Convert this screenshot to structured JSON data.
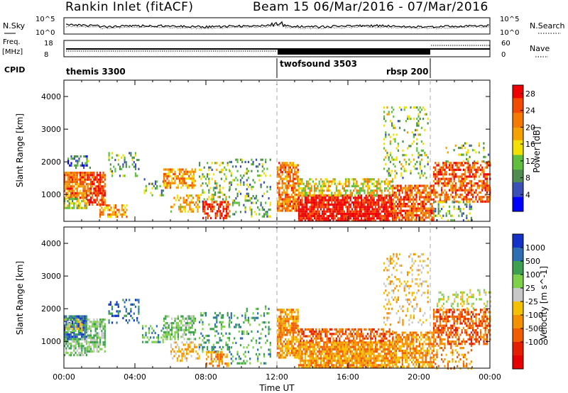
{
  "header": {
    "station": "Rankin Inlet (fitACF)",
    "beam_range": "Beam 15  06/Mar/2016 - 07/Mar/2016"
  },
  "noise_panel": {
    "left_label": "N.Sky",
    "right_label": "N.Search",
    "left_ticks": [
      "10^5",
      "10^0"
    ],
    "right_ticks": [
      "10^5",
      "10^0"
    ]
  },
  "freq_panel": {
    "left_label_top": "Freq.",
    "left_label_unit": "[MHz]",
    "right_label": "Nave",
    "left_ticks": [
      "18",
      "8"
    ],
    "right_ticks": [
      "60",
      "0"
    ]
  },
  "cpid_panel": {
    "label": "CPID",
    "modes": [
      {
        "name": "themis 3300",
        "start_hr": 0,
        "end_hr": 12
      },
      {
        "name": "twofsound 3503",
        "start_hr": 12,
        "end_hr": 20.7
      },
      {
        "name": "rbsp 200",
        "start_hr": 20.7,
        "end_hr": 24
      }
    ]
  },
  "colors": {
    "power_scale": [
      "#0000ff",
      "#3b50b7",
      "#4f8c4f",
      "#5fbf3f",
      "#f2e100",
      "#f5a100",
      "#f47a00",
      "#f24a00",
      "#f00000"
    ],
    "velocity_scale": [
      "#1432c8",
      "#2e6fb4",
      "#3ca050",
      "#7ed14a",
      "#c8c8c8",
      "#f5c000",
      "#f59000",
      "#f25c00",
      "#e61e00",
      "#e60000"
    ],
    "white": "#ffffff"
  },
  "chart_data": [
    {
      "type": "heatmap",
      "panel": "power",
      "ylabel": "Slant Range [km]",
      "ylim": [
        180,
        4500
      ],
      "yticks": [
        "1000",
        "2000",
        "3000",
        "4000"
      ],
      "colorbar": {
        "title": "Power [dB]",
        "ticks": [
          "4",
          "8",
          "12",
          "16",
          "20",
          "24",
          "28"
        ],
        "range": [
          0,
          30
        ]
      },
      "scatter_regions": [
        {
          "x0": 0,
          "x1": 1.3,
          "y0": 900,
          "y1": 1700,
          "value": 22,
          "density": 0.82
        },
        {
          "x0": 0,
          "x1": 1.3,
          "y0": 600,
          "y1": 900,
          "value": 14,
          "density": 0.7
        },
        {
          "x0": 1.3,
          "x1": 2.3,
          "y0": 700,
          "y1": 1700,
          "value": 25,
          "density": 0.78
        },
        {
          "x0": 0.2,
          "x1": 1.5,
          "y0": 1800,
          "y1": 2200,
          "value": 8,
          "density": 0.4
        },
        {
          "x0": 2.5,
          "x1": 4.2,
          "y0": 1600,
          "y1": 2300,
          "value": 10,
          "density": 0.28
        },
        {
          "x0": 2.0,
          "x1": 3.5,
          "y0": 300,
          "y1": 700,
          "value": 20,
          "density": 0.55
        },
        {
          "x0": 4.5,
          "x1": 5.6,
          "y0": 1000,
          "y1": 1500,
          "value": 10,
          "density": 0.35
        },
        {
          "x0": 5.6,
          "x1": 7.4,
          "y0": 1200,
          "y1": 1800,
          "value": 20,
          "density": 0.65
        },
        {
          "x0": 6.0,
          "x1": 7.6,
          "y0": 500,
          "y1": 1000,
          "value": 18,
          "density": 0.45
        },
        {
          "x0": 7.6,
          "x1": 9.3,
          "y0": 800,
          "y1": 2000,
          "value": 12,
          "density": 0.3
        },
        {
          "x0": 7.8,
          "x1": 9.3,
          "y0": 250,
          "y1": 800,
          "value": 26,
          "density": 0.6
        },
        {
          "x0": 9.3,
          "x1": 11.6,
          "y0": 300,
          "y1": 2100,
          "value": 10,
          "density": 0.22
        },
        {
          "x0": 12.0,
          "x1": 13.2,
          "y0": 500,
          "y1": 2000,
          "value": 22,
          "density": 0.75
        },
        {
          "x0": 13.2,
          "x1": 18.5,
          "y0": 200,
          "y1": 1000,
          "value": 29,
          "density": 0.88
        },
        {
          "x0": 13.2,
          "x1": 18.5,
          "y0": 1000,
          "y1": 1500,
          "value": 16,
          "density": 0.55
        },
        {
          "x0": 18.5,
          "x1": 20.8,
          "y0": 200,
          "y1": 1300,
          "value": 24,
          "density": 0.7
        },
        {
          "x0": 18.0,
          "x1": 20.5,
          "y0": 1500,
          "y1": 3700,
          "value": 12,
          "density": 0.22
        },
        {
          "x0": 20.8,
          "x1": 24.0,
          "y0": 800,
          "y1": 2000,
          "value": 24,
          "density": 0.6
        },
        {
          "x0": 20.8,
          "x1": 23.0,
          "y0": 200,
          "y1": 800,
          "value": 10,
          "density": 0.3
        },
        {
          "x0": 21.5,
          "x1": 24.0,
          "y0": 2000,
          "y1": 2600,
          "value": 12,
          "density": 0.2
        }
      ]
    },
    {
      "type": "heatmap",
      "panel": "velocity",
      "xlabel": "Time UT",
      "ylabel": "Slant Range [km]",
      "ylim": [
        180,
        4500
      ],
      "xlim": [
        0,
        24
      ],
      "xticks": [
        "00:00",
        "04:00",
        "08:00",
        "12:00",
        "16:00",
        "20:00",
        "00:00"
      ],
      "yticks": [
        "1000",
        "2000",
        "3000",
        "4000"
      ],
      "colorbar": {
        "title": "Velocity [m s^-1]",
        "ticks": [
          "1000",
          "500",
          "100",
          "25",
          "-25",
          "-100",
          "-500",
          "-1000"
        ]
      },
      "scatter_regions": [
        {
          "x0": 0,
          "x1": 1.3,
          "y0": 1100,
          "y1": 1800,
          "value": 1,
          "density": 0.85
        },
        {
          "x0": 0,
          "x1": 1.3,
          "y0": 600,
          "y1": 1100,
          "value": 3,
          "density": 0.6
        },
        {
          "x0": 1.3,
          "x1": 2.3,
          "y0": 700,
          "y1": 1700,
          "value": 3,
          "density": 0.75
        },
        {
          "x0": 2.5,
          "x1": 4.2,
          "y0": 1600,
          "y1": 2300,
          "value": 1,
          "density": 0.25
        },
        {
          "x0": 4.4,
          "x1": 5.6,
          "y0": 1000,
          "y1": 1500,
          "value": 2,
          "density": 0.35
        },
        {
          "x0": 5.6,
          "x1": 7.4,
          "y0": 1100,
          "y1": 1800,
          "value": 3,
          "density": 0.6
        },
        {
          "x0": 6.0,
          "x1": 7.6,
          "y0": 400,
          "y1": 1000,
          "value": 5,
          "density": 0.4
        },
        {
          "x0": 7.6,
          "x1": 9.3,
          "y0": 700,
          "y1": 1900,
          "value": 2,
          "density": 0.3
        },
        {
          "x0": 8.0,
          "x1": 9.3,
          "y0": 250,
          "y1": 700,
          "value": 6,
          "density": 0.5
        },
        {
          "x0": 9.3,
          "x1": 11.6,
          "y0": 300,
          "y1": 2100,
          "value": 2,
          "density": 0.2
        },
        {
          "x0": 12.0,
          "x1": 13.2,
          "y0": 500,
          "y1": 2000,
          "value": 6,
          "density": 0.75
        },
        {
          "x0": 13.2,
          "x1": 18.5,
          "y0": 200,
          "y1": 1000,
          "value": 6,
          "density": 0.86
        },
        {
          "x0": 13.2,
          "x1": 18.5,
          "y0": 1000,
          "y1": 1400,
          "value": 7,
          "density": 0.6
        },
        {
          "x0": 18.5,
          "x1": 20.8,
          "y0": 200,
          "y1": 1300,
          "value": 6,
          "density": 0.65
        },
        {
          "x0": 18.0,
          "x1": 20.5,
          "y0": 1500,
          "y1": 3700,
          "value": 5,
          "density": 0.2
        },
        {
          "x0": 20.8,
          "x1": 24.0,
          "y0": 900,
          "y1": 2000,
          "value": 7,
          "density": 0.6
        },
        {
          "x0": 20.8,
          "x1": 23.0,
          "y0": 200,
          "y1": 900,
          "value": 6,
          "density": 0.3
        },
        {
          "x0": 21.0,
          "x1": 24.0,
          "y0": 2000,
          "y1": 2600,
          "value": 4,
          "density": 0.25
        },
        {
          "x0": 0,
          "x1": 1.0,
          "y0": 1300,
          "y1": 1700,
          "value": 4,
          "density": 0.5
        }
      ]
    }
  ]
}
